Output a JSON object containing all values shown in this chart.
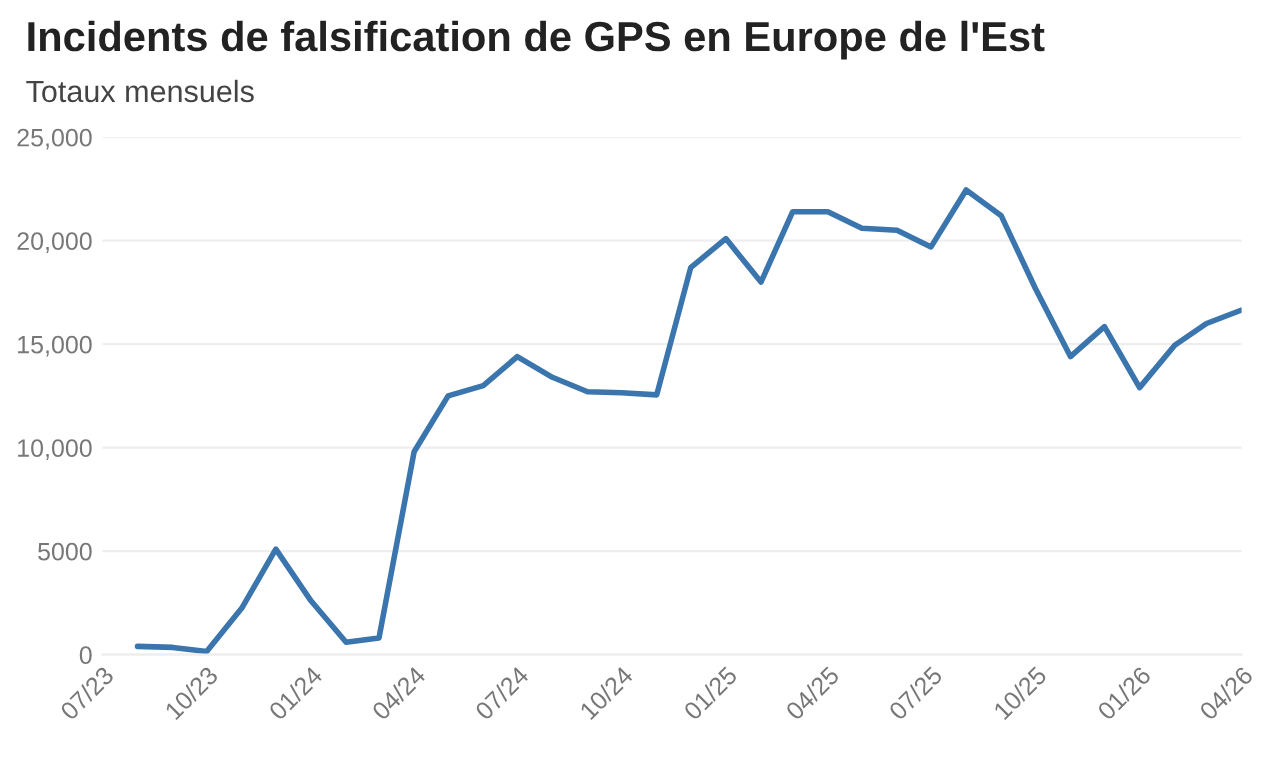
{
  "chart_data": {
    "type": "line",
    "title": "Incidents de falsification de GPS en Europe de l'Est",
    "subtitle": "Totaux mensuels",
    "x": [
      "2023-08",
      "2023-09",
      "2023-10",
      "2023-11",
      "2023-12",
      "2024-01",
      "2024-02",
      "2024-03",
      "2024-04",
      "2024-05",
      "2024-06",
      "2024-07",
      "2024-08",
      "2024-09",
      "2024-10",
      "2024-11",
      "2024-12",
      "2025-01",
      "2025-02",
      "2025-03",
      "2025-04",
      "2025-05",
      "2025-06",
      "2025-07",
      "2025-08",
      "2025-09",
      "2025-10",
      "2025-11",
      "2025-12",
      "2026-01",
      "2026-02",
      "2026-03",
      "2026-04"
    ],
    "series": [
      {
        "color": "#3a75ad",
        "values": [
          400,
          350,
          150,
          2250,
          5100,
          2600,
          600,
          800,
          9800,
          12500,
          13000,
          14400,
          13400,
          12700,
          12650,
          12550,
          18700,
          20100,
          18000,
          21400,
          21400,
          20600,
          20500,
          19700,
          22450,
          21200,
          17700,
          14400,
          15850,
          12900,
          14950,
          16000,
          16650
        ]
      }
    ],
    "xlim": [
      "2023-07",
      "2026-04"
    ],
    "xticks": [
      {
        "value": "2023-07",
        "label": "07/23"
      },
      {
        "value": "2023-10",
        "label": "10/23"
      },
      {
        "value": "2024-01",
        "label": "01/24"
      },
      {
        "value": "2024-04",
        "label": "04/24"
      },
      {
        "value": "2024-07",
        "label": "07/24"
      },
      {
        "value": "2024-10",
        "label": "10/24"
      },
      {
        "value": "2025-01",
        "label": "01/25"
      },
      {
        "value": "2025-04",
        "label": "04/25"
      },
      {
        "value": "2025-07",
        "label": "07/25"
      },
      {
        "value": "2025-10",
        "label": "10/25"
      },
      {
        "value": "2026-01",
        "label": "01/26"
      },
      {
        "value": "2026-04",
        "label": "04/26"
      }
    ],
    "ylim": [
      0,
      25000
    ],
    "yticks": [
      0,
      5000,
      {
        "value": 10000,
        "label": "10,000"
      },
      {
        "value": 15000,
        "label": "15,000"
      },
      {
        "value": 20000,
        "label": "20,000"
      },
      {
        "value": 25000,
        "label": "25,000"
      }
    ],
    "grid": "y",
    "line_style": "solid"
  }
}
